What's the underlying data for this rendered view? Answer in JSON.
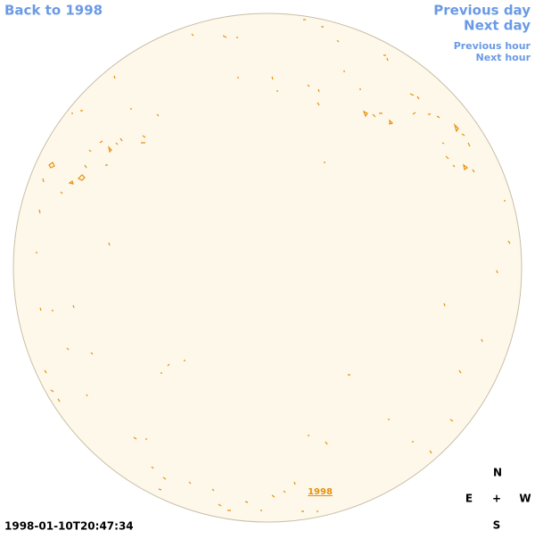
{
  "navigation": {
    "back": "Back to 1998",
    "previous_day": "Previous day",
    "next_day": "Next day",
    "previous_hour": "Previous hour",
    "next_hour": "Next hour"
  },
  "disk_label": "1998",
  "timestamp": "1998-01-10T20:47:34",
  "compass": {
    "north": "N",
    "east": "E",
    "center": "+",
    "west": "W",
    "south": "S"
  }
}
